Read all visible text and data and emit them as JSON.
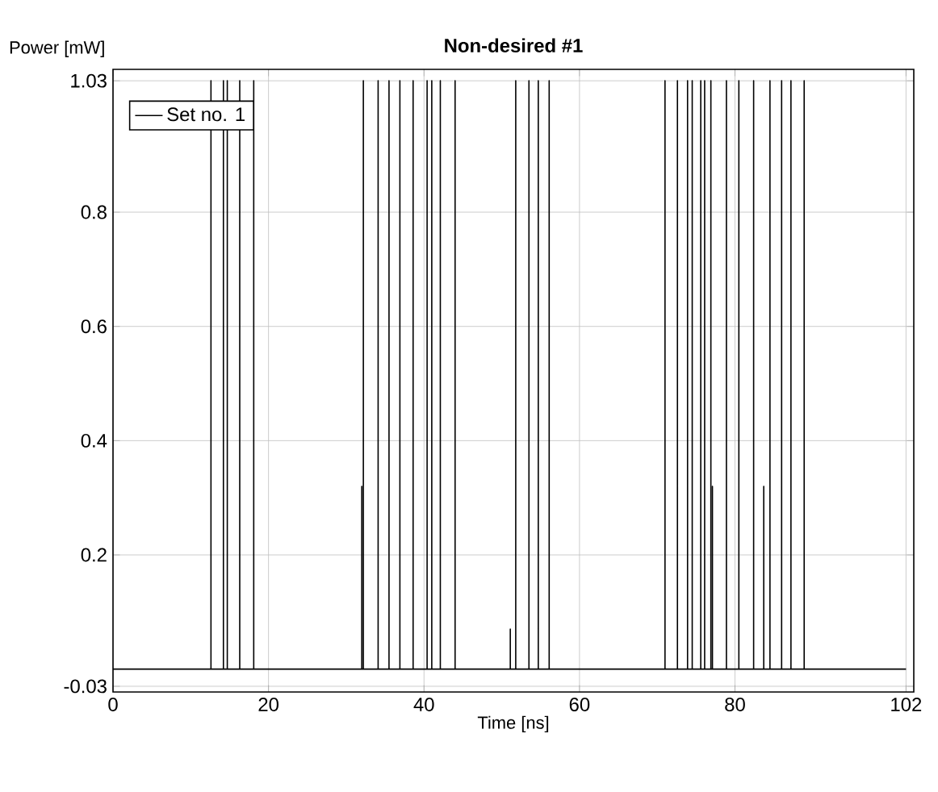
{
  "chart_data": {
    "type": "line",
    "title": "Non-desired #1",
    "ylabel": "Power [mW]",
    "xlabel": "Time [ns]",
    "xlim": [
      0,
      103
    ],
    "ylim": [
      -0.04,
      1.05
    ],
    "xticks": [
      0,
      20,
      40,
      60,
      80,
      102
    ],
    "yticks": [
      -0.03,
      0.2,
      0.4,
      0.6,
      0.8,
      1.03
    ],
    "grid": true,
    "legend": "top left",
    "marker": "none",
    "line_style": "solid",
    "series": [
      {
        "name": "Set no. 1",
        "color": "#000000",
        "x": [
          0,
          12.6,
          12.6,
          12.6,
          14.2,
          14.2,
          14.2,
          14.7,
          14.7,
          14.7,
          16.3,
          16.3,
          16.3,
          18.1,
          18.1,
          18.1,
          32.0,
          32.0,
          32.0,
          32.2,
          32.2,
          32.2,
          34.1,
          34.1,
          34.1,
          35.5,
          35.5,
          35.5,
          36.9,
          36.9,
          36.9,
          38.6,
          38.6,
          38.6,
          40.4,
          40.4,
          40.4,
          41.0,
          41.0,
          41.0,
          42.1,
          42.1,
          42.1,
          44.0,
          44.0,
          44.0,
          51.1,
          51.1,
          51.1,
          51.8,
          51.8,
          51.8,
          53.5,
          53.5,
          53.5,
          54.7,
          54.7,
          54.7,
          56.1,
          56.1,
          56.1,
          71.0,
          71.0,
          71.0,
          72.6,
          72.6,
          72.6,
          73.9,
          73.9,
          73.9,
          74.5,
          74.5,
          74.5,
          75.6,
          75.6,
          75.6,
          76.1,
          76.1,
          76.1,
          76.9,
          76.9,
          76.9,
          77.1,
          77.1,
          77.1,
          78.9,
          78.9,
          78.9,
          80.5,
          80.5,
          80.5,
          82.4,
          82.4,
          82.4,
          83.7,
          83.7,
          83.7,
          84.5,
          84.5,
          84.5,
          86.0,
          86.0,
          86.0,
          87.2,
          87.2,
          87.2,
          88.9,
          88.9,
          88.9,
          102
        ],
        "values": [
          0,
          0,
          1.03,
          0,
          0,
          1.03,
          0,
          0,
          1.03,
          0,
          0,
          1.03,
          0,
          0,
          1.03,
          0,
          0,
          0.32,
          0,
          0,
          1.03,
          0,
          0,
          1.03,
          0,
          0,
          1.03,
          0,
          0,
          1.03,
          0,
          0,
          1.03,
          0,
          0,
          1.03,
          0,
          0,
          1.03,
          0,
          0,
          1.03,
          0,
          0,
          1.03,
          0,
          0,
          0.07,
          0,
          0,
          1.03,
          0,
          0,
          1.03,
          0,
          0,
          1.03,
          0,
          0,
          1.03,
          0,
          0,
          1.03,
          0,
          0,
          1.03,
          0,
          0,
          1.03,
          0,
          0,
          1.03,
          0,
          0,
          1.03,
          0,
          0,
          1.03,
          0,
          0,
          1.03,
          0,
          0,
          0.32,
          0,
          0,
          1.03,
          0,
          0,
          1.03,
          0,
          0,
          1.03,
          0,
          0,
          0.32,
          0,
          0,
          1.03,
          0,
          0,
          1.03,
          0,
          0,
          1.03,
          0,
          0,
          1.03,
          0,
          0
        ]
      }
    ]
  }
}
